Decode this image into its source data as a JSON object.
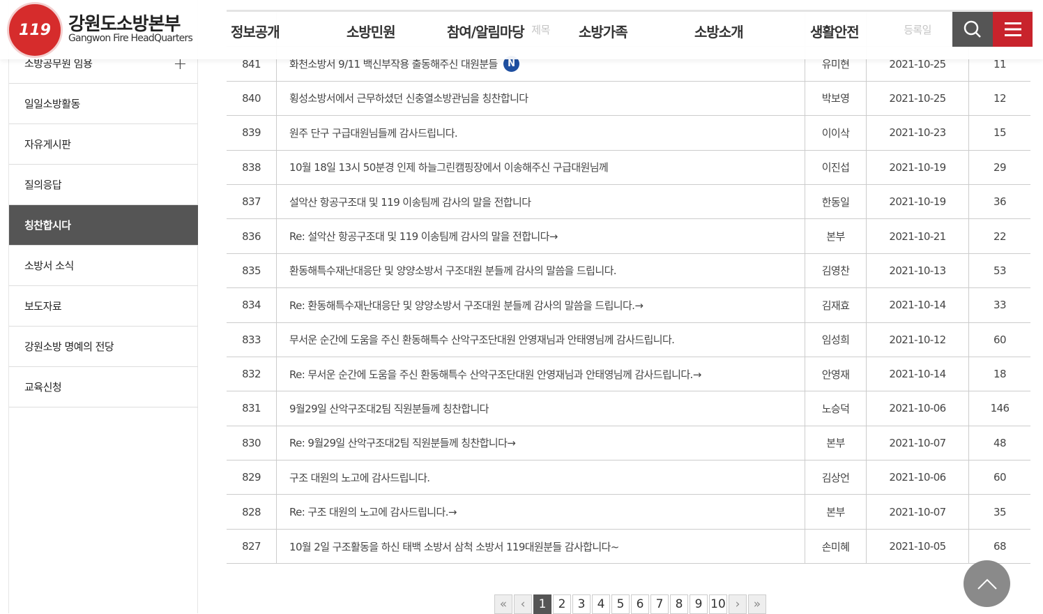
{
  "header": {
    "brand": "강원도소방본부",
    "brand_en": "Gangwon Fire HeadQuarters",
    "logo_text": "119",
    "nav": [
      "정보공개",
      "소방민원",
      "참여/알림마당",
      "소방가족",
      "소방소개",
      "생활안전"
    ],
    "search_icon": "search-icon",
    "menu_icon": "hamburger-menu-icon",
    "accent": "#c8232c"
  },
  "sidebar": {
    "items": [
      {
        "label": "소방공무원 임용",
        "expand": "+"
      },
      {
        "label": "일일소방활동"
      },
      {
        "label": "자유게시판"
      },
      {
        "label": "질의응답"
      },
      {
        "label": "칭찬합시다",
        "active": true
      },
      {
        "label": "소방서 소식"
      },
      {
        "label": "보도자료"
      },
      {
        "label": "강원소방 명예의 전당"
      },
      {
        "label": "교육신청"
      }
    ]
  },
  "table": {
    "headers": {
      "title": "제목",
      "date": "등록일"
    },
    "rows": [
      {
        "no": "841",
        "title": "화천소방서 9/11 백신부작용 출동해주신 대원분들",
        "new": "N",
        "author": "유미현",
        "date": "2021-10-25",
        "views": "11"
      },
      {
        "no": "840",
        "title": "횡성소방서에서 근무하셨던 신충열소방관님을 칭찬합니다",
        "author": "박보영",
        "date": "2021-10-25",
        "views": "12"
      },
      {
        "no": "839",
        "title": "원주 단구 구급대원님들께 감사드립니다.",
        "author": "이이삭",
        "date": "2021-10-23",
        "views": "15"
      },
      {
        "no": "838",
        "title": "10월 18일 13시 50분경 인제 하늘그린캠핑장에서 이송해주신 구급대원님께",
        "author": "이진섭",
        "date": "2021-10-19",
        "views": "29"
      },
      {
        "no": "837",
        "title": "설악산 항공구조대 및 119 이송팀께 감사의 말을 전합니다",
        "author": "한동일",
        "date": "2021-10-19",
        "views": "36"
      },
      {
        "no": "836",
        "title": "Re: 설악산 항공구조대 및 119 이송팀께 감사의 말을 전합니다→",
        "author": "본부",
        "date": "2021-10-21",
        "views": "22"
      },
      {
        "no": "835",
        "title": "환동해특수재난대응단 및 양양소방서 구조대원 분들께 감사의 말씀을 드립니다.",
        "author": "김영찬",
        "date": "2021-10-13",
        "views": "53"
      },
      {
        "no": "834",
        "title": "Re: 환동해특수재난대응단 및 양양소방서 구조대원 분들께 감사의 말씀을 드립니다.→",
        "author": "김재효",
        "date": "2021-10-14",
        "views": "33"
      },
      {
        "no": "833",
        "title": "무서운 순간에 도움을 주신 환동해특수 산악구조단대원 안영재님과 안태영님께 감사드립니다.",
        "author": "임성희",
        "date": "2021-10-12",
        "views": "60"
      },
      {
        "no": "832",
        "title": "Re: 무서운 순간에 도움을 주신 환동해특수 산악구조단대원 안영재님과 안태영님께 감사드립니다.→",
        "author": "안영재",
        "date": "2021-10-14",
        "views": "18"
      },
      {
        "no": "831",
        "title": "9월29일 산악구조대2팀 직원분들께 칭찬합니다",
        "author": "노승덕",
        "date": "2021-10-06",
        "views": "146"
      },
      {
        "no": "830",
        "title": "Re: 9월29일 산악구조대2팀 직원분들께 칭찬합니다→",
        "author": "본부",
        "date": "2021-10-07",
        "views": "48"
      },
      {
        "no": "829",
        "title": "구조 대원의 노고에 감사드립니다.",
        "author": "김상언",
        "date": "2021-10-06",
        "views": "60"
      },
      {
        "no": "828",
        "title": "Re: 구조 대원의 노고에 감사드립니다.→",
        "author": "본부",
        "date": "2021-10-07",
        "views": "35"
      },
      {
        "no": "827",
        "title": "10월 2일 구조활동을 하신 태백 소방서 삼척 소방서 119대원분들 감사합니다~",
        "author": "손미혜",
        "date": "2021-10-05",
        "views": "68"
      }
    ]
  },
  "pagination": {
    "first": "«",
    "prev": "‹",
    "pages": [
      "1",
      "2",
      "3",
      "4",
      "5",
      "6",
      "7",
      "8",
      "9",
      "10"
    ],
    "current": "1",
    "next": "›",
    "last": "»"
  },
  "scroll_top_icon": "chevron-up-icon"
}
